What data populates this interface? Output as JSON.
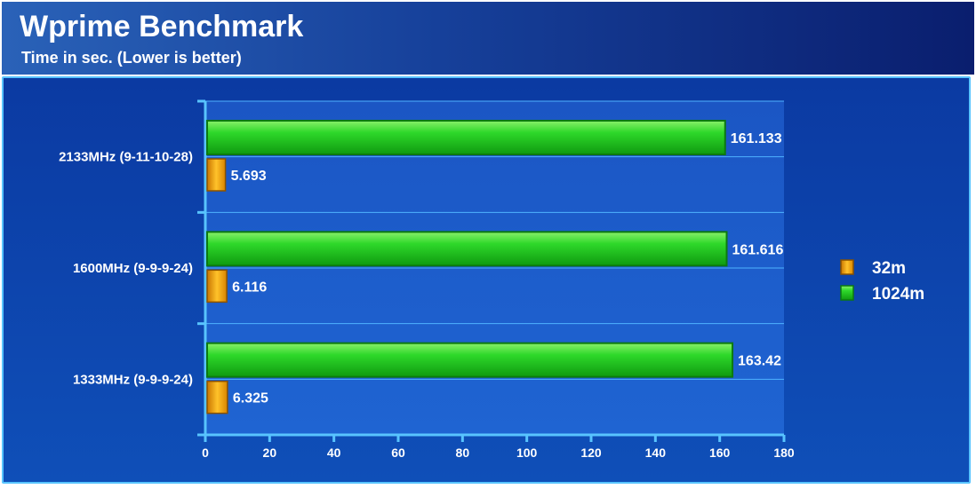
{
  "chart_data": {
    "type": "bar",
    "orientation": "horizontal",
    "title": "Wprime Benchmark",
    "subtitle": "Time in sec. (Lower is better)",
    "categories": [
      "2133MHz (9-11-10-28)",
      "1600MHz (9-9-9-24)",
      "1333MHz (9-9-9-24)"
    ],
    "series": [
      {
        "name": "32m",
        "values": [
          5.693,
          6.116,
          6.325
        ],
        "labels": [
          "5.693",
          "6.116",
          "6.325"
        ],
        "color": "#f5a800"
      },
      {
        "name": "1024m",
        "values": [
          161.133,
          161.616,
          163.42
        ],
        "labels": [
          "161.133",
          "161.616",
          "163.42"
        ],
        "color": "#22cc22"
      }
    ],
    "xlim": [
      0,
      180
    ],
    "xticks": [
      0,
      20,
      40,
      60,
      80,
      100,
      120,
      140,
      160,
      180
    ],
    "xtick_labels": [
      "0",
      "20",
      "40",
      "60",
      "80",
      "100",
      "120",
      "140",
      "160",
      "180"
    ],
    "grid": true,
    "legend_position": "right",
    "colors": {
      "header_left": "#2a62b8",
      "header_right": "#0a1e6e",
      "panel": "#0f4fb8",
      "axis": "#58c4ff",
      "plot_band": "#1a5ccb"
    }
  }
}
